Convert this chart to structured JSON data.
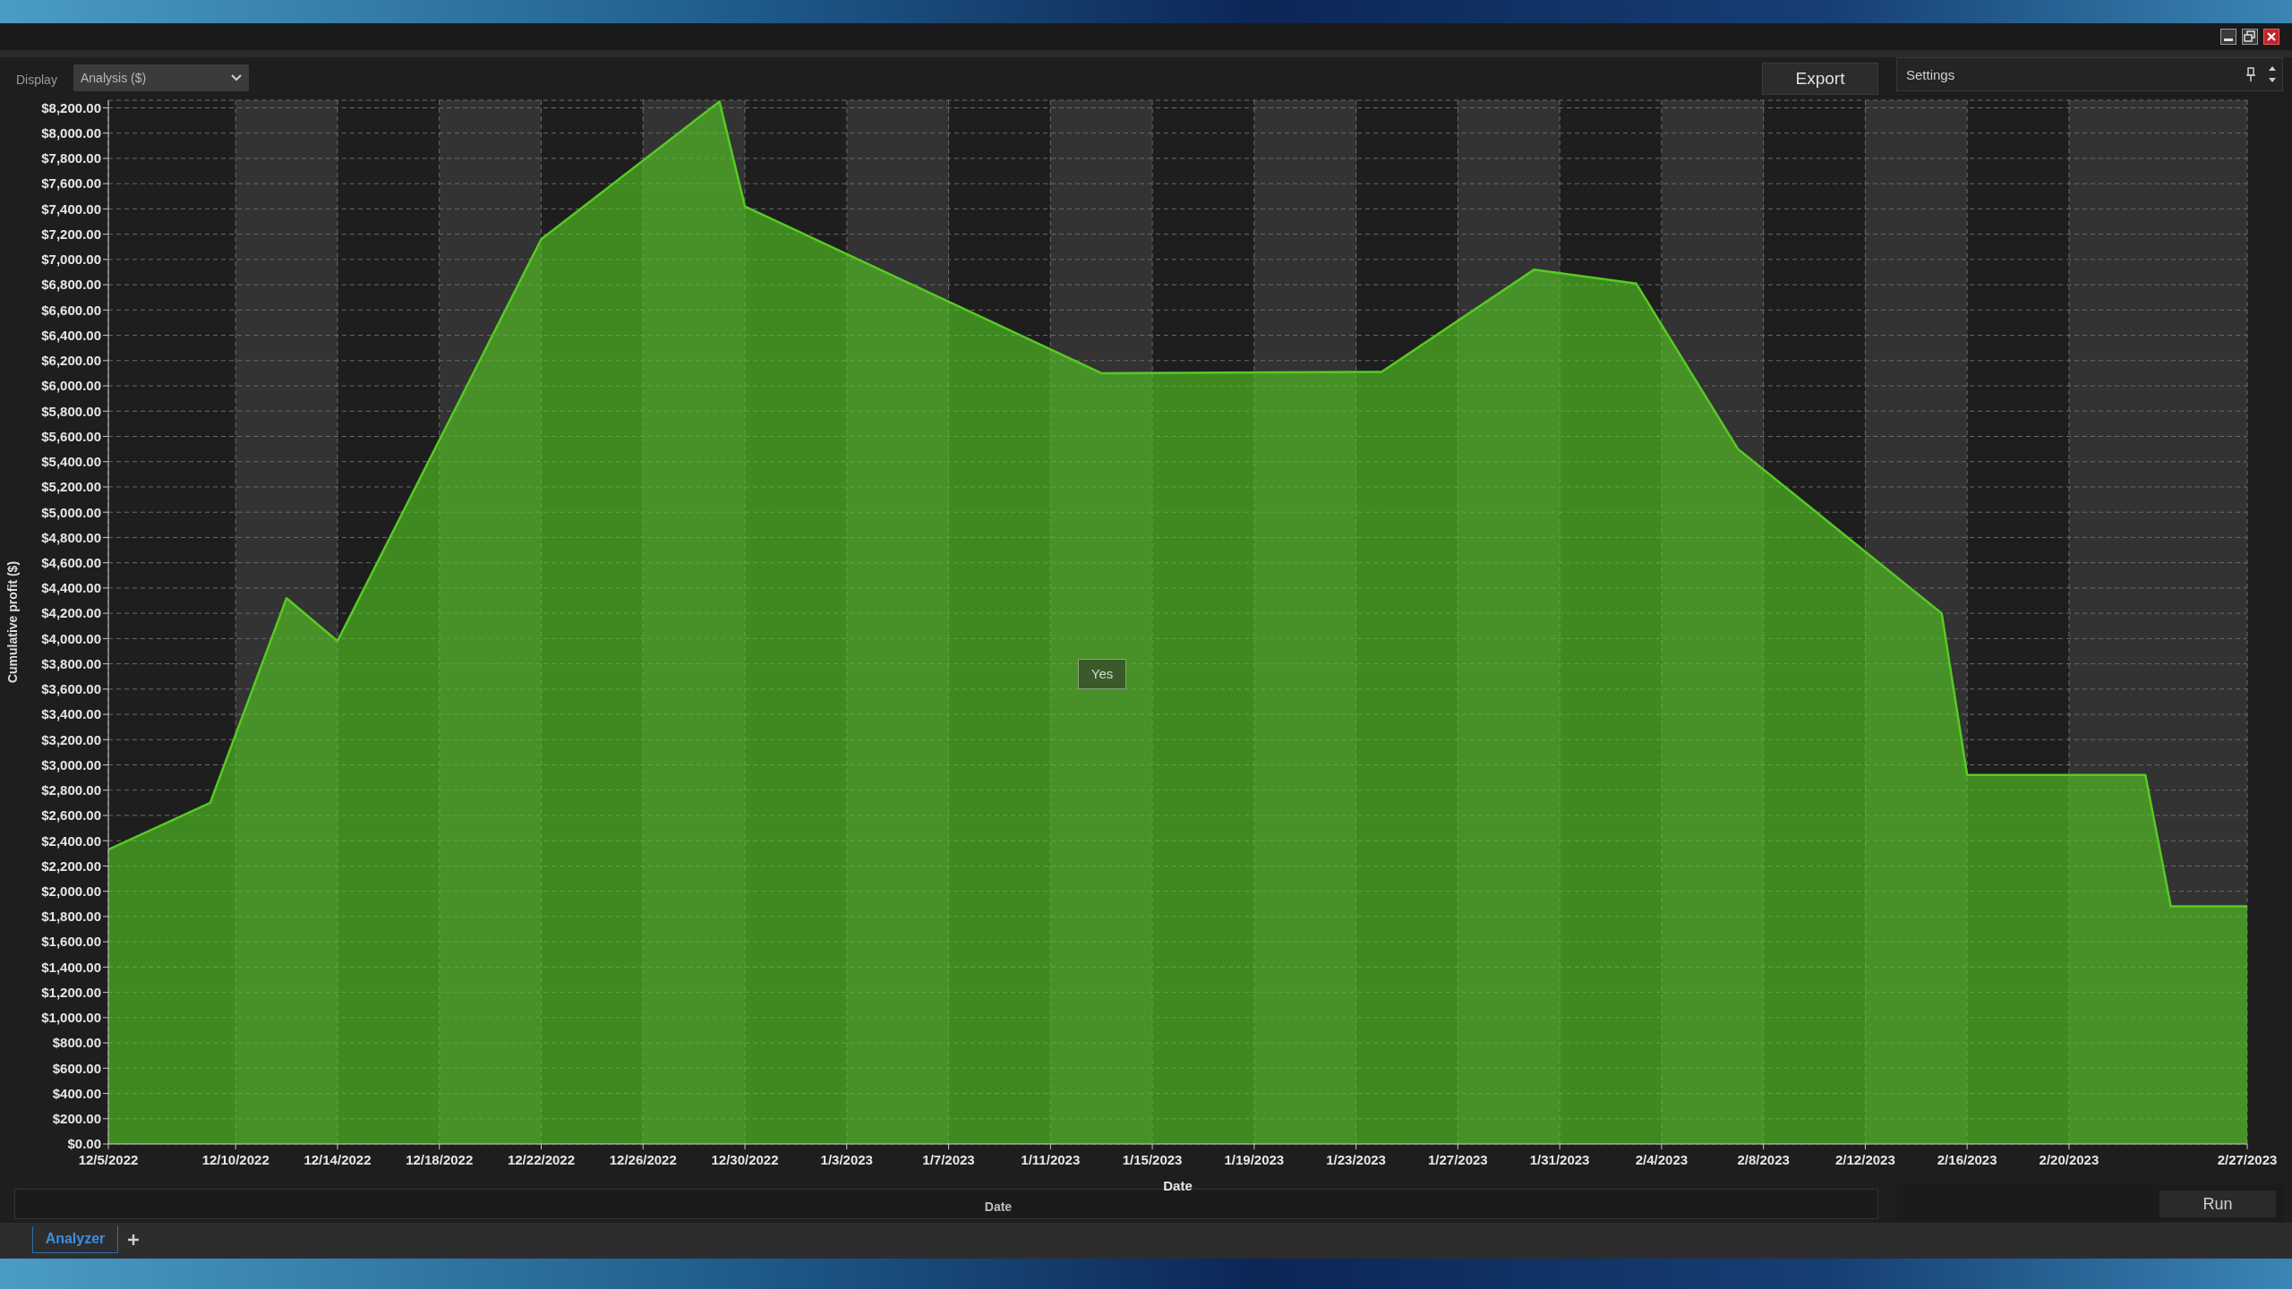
{
  "chart_data": {
    "type": "area",
    "xlabel": "Date",
    "ylabel": "Cumulative profit ($)",
    "annotations": [
      "Display",
      "Analysis ($)",
      "Export",
      "Settings",
      "Yes",
      "Date",
      "Run",
      "Analyzer"
    ],
    "x": [
      "2022-12-05",
      "2022-12-09",
      "2022-12-12",
      "2022-12-14",
      "2022-12-22",
      "2022-12-29",
      "2022-12-30",
      "2023-01-13",
      "2023-01-24",
      "2023-01-30",
      "2023-02-03",
      "2023-02-07",
      "2023-02-15",
      "2023-02-16",
      "2023-02-23",
      "2023-02-24",
      "2023-02-27"
    ],
    "values": [
      2330,
      2700,
      4320,
      3980,
      7160,
      8250,
      7420,
      6100,
      6110,
      6920,
      6810,
      5500,
      4200,
      2920,
      2920,
      1880,
      1880
    ],
    "color": "#55cc22",
    "xlim": [
      "2022-12-05",
      "2023-02-27"
    ],
    "xticks": [
      {
        "value": "2022-12-05",
        "label": "12/5/2022"
      },
      {
        "value": "2022-12-10",
        "label": "12/10/2022"
      },
      {
        "value": "2022-12-14",
        "label": "12/14/2022"
      },
      {
        "value": "2022-12-18",
        "label": "12/18/2022"
      },
      {
        "value": "2022-12-22",
        "label": "12/22/2022"
      },
      {
        "value": "2022-12-26",
        "label": "12/26/2022"
      },
      {
        "value": "2022-12-30",
        "label": "12/30/2022"
      },
      {
        "value": "2023-01-03",
        "label": "1/3/2023"
      },
      {
        "value": "2023-01-07",
        "label": "1/7/2023"
      },
      {
        "value": "2023-01-11",
        "label": "1/11/2023"
      },
      {
        "value": "2023-01-15",
        "label": "1/15/2023"
      },
      {
        "value": "2023-01-19",
        "label": "1/19/2023"
      },
      {
        "value": "2023-01-23",
        "label": "1/23/2023"
      },
      {
        "value": "2023-01-27",
        "label": "1/27/2023"
      },
      {
        "value": "2023-01-31",
        "label": "1/31/2023"
      },
      {
        "value": "2023-02-04",
        "label": "2/4/2023"
      },
      {
        "value": "2023-02-08",
        "label": "2/8/2023"
      },
      {
        "value": "2023-02-12",
        "label": "2/12/2023"
      },
      {
        "value": "2023-02-16",
        "label": "2/16/2023"
      },
      {
        "value": "2023-02-20",
        "label": "2/20/2023"
      },
      {
        "value": "2023-02-27",
        "label": "2/27/2023"
      }
    ],
    "ylim": [
      0,
      8260
    ],
    "yticks": [
      {
        "value": 0,
        "label": "$0.00"
      },
      {
        "value": 200,
        "label": "$200.00"
      },
      {
        "value": 400,
        "label": "$400.00"
      },
      {
        "value": 600,
        "label": "$600.00"
      },
      {
        "value": 800,
        "label": "$800.00"
      },
      {
        "value": 1000,
        "label": "$1,000.00"
      },
      {
        "value": 1200,
        "label": "$1,200.00"
      },
      {
        "value": 1400,
        "label": "$1,400.00"
      },
      {
        "value": 1600,
        "label": "$1,600.00"
      },
      {
        "value": 1800,
        "label": "$1,800.00"
      },
      {
        "value": 2000,
        "label": "$2,000.00"
      },
      {
        "value": 2200,
        "label": "$2,200.00"
      },
      {
        "value": 2400,
        "label": "$2,400.00"
      },
      {
        "value": 2600,
        "label": "$2,600.00"
      },
      {
        "value": 2800,
        "label": "$2,800.00"
      },
      {
        "value": 3000,
        "label": "$3,000.00"
      },
      {
        "value": 3200,
        "label": "$3,200.00"
      },
      {
        "value": 3400,
        "label": "$3,400.00"
      },
      {
        "value": 3600,
        "label": "$3,600.00"
      },
      {
        "value": 3800,
        "label": "$3,800.00"
      },
      {
        "value": 4000,
        "label": "$4,000.00"
      },
      {
        "value": 4200,
        "label": "$4,200.00"
      },
      {
        "value": 4400,
        "label": "$4,400.00"
      },
      {
        "value": 4600,
        "label": "$4,600.00"
      },
      {
        "value": 4800,
        "label": "$4,800.00"
      },
      {
        "value": 5000,
        "label": "$5,000.00"
      },
      {
        "value": 5200,
        "label": "$5,200.00"
      },
      {
        "value": 5400,
        "label": "$5,400.00"
      },
      {
        "value": 5600,
        "label": "$5,600.00"
      },
      {
        "value": 5800,
        "label": "$5,800.00"
      },
      {
        "value": 6000,
        "label": "$6,000.00"
      },
      {
        "value": 6200,
        "label": "$6,200.00"
      },
      {
        "value": 6400,
        "label": "$6,400.00"
      },
      {
        "value": 6600,
        "label": "$6,600.00"
      },
      {
        "value": 6800,
        "label": "$6,800.00"
      },
      {
        "value": 7000,
        "label": "$7,000.00"
      },
      {
        "value": 7200,
        "label": "$7,200.00"
      },
      {
        "value": 7400,
        "label": "$7,400.00"
      },
      {
        "value": 7600,
        "label": "$7,600.00"
      },
      {
        "value": 7800,
        "label": "$7,800.00"
      },
      {
        "value": 8000,
        "label": "$8,000.00"
      },
      {
        "value": 8200,
        "label": "$8,200.00"
      }
    ],
    "grid": true
  }
}
